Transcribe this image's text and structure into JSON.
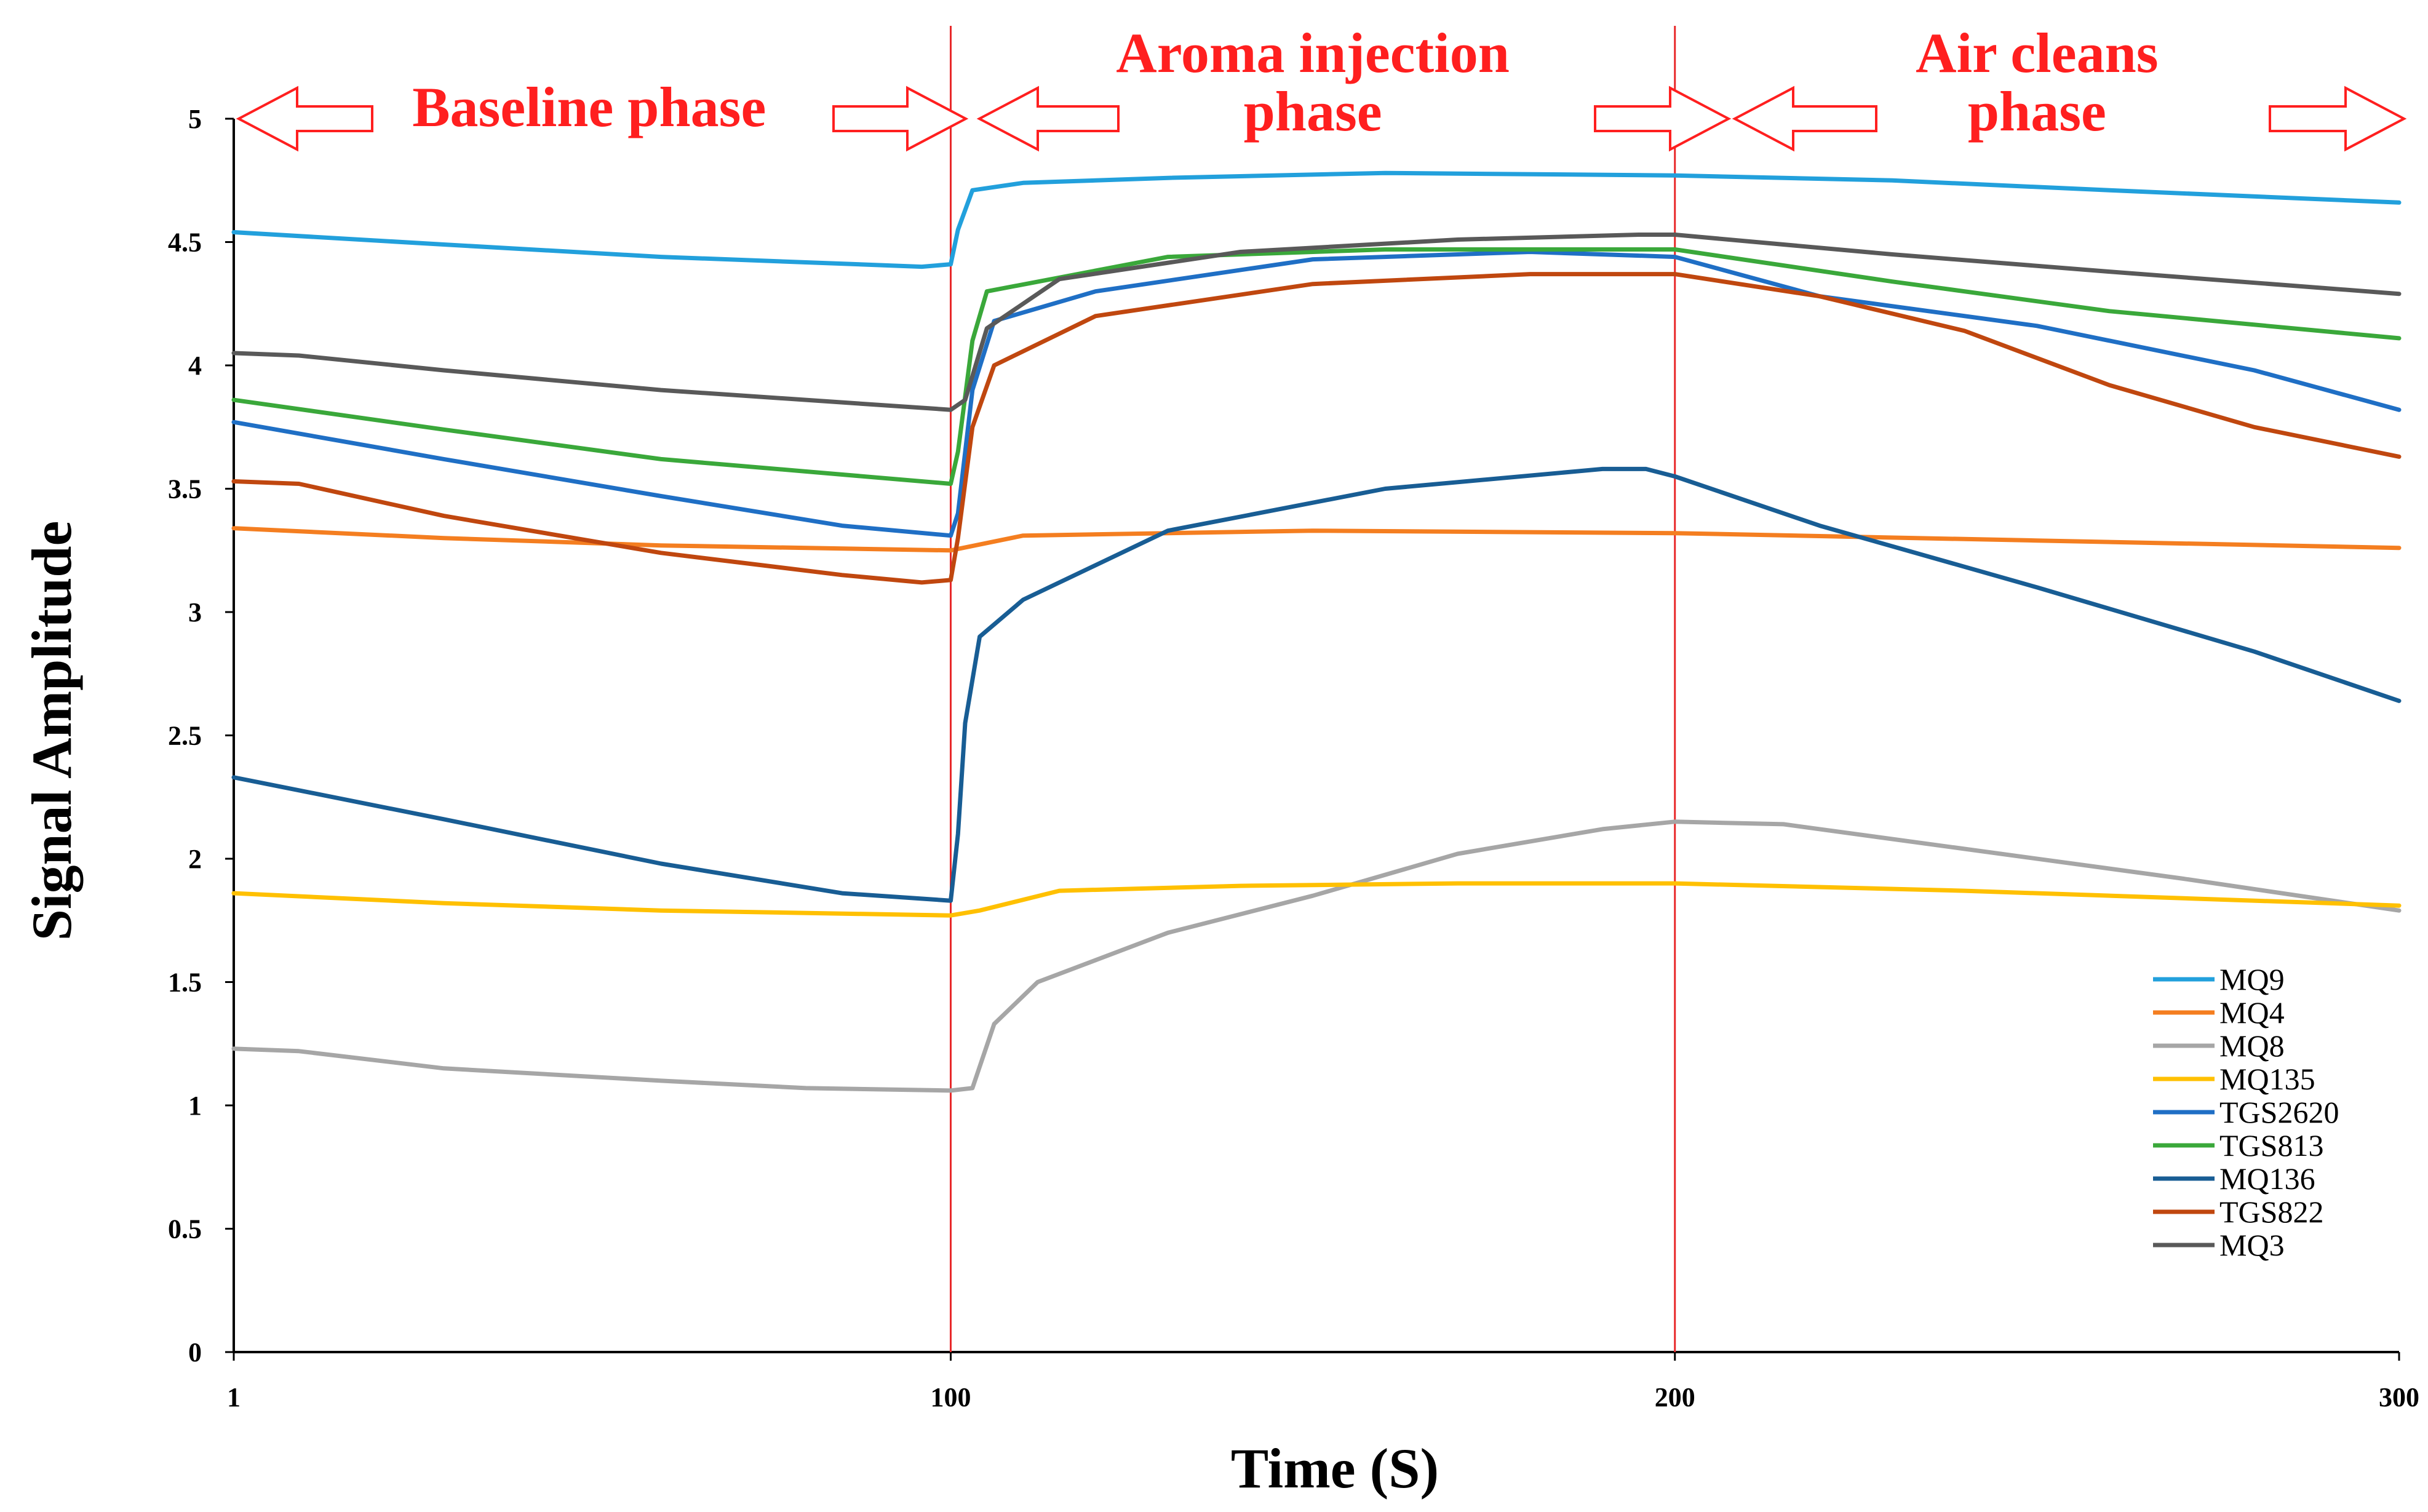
{
  "chart_data": {
    "type": "line",
    "title": "",
    "xlabel": "Time (S)",
    "ylabel": "Signal Amplitude",
    "xlim": [
      1,
      300
    ],
    "ylim": [
      0,
      5
    ],
    "x_ticks": [
      {
        "value": 1,
        "label": "1"
      },
      {
        "value": 100,
        "label": "100"
      },
      {
        "value": 200,
        "label": "200"
      },
      {
        "value": 300,
        "label": "300"
      }
    ],
    "y_ticks": [
      {
        "value": 0,
        "label": "0"
      },
      {
        "value": 0.5,
        "label": "0.5"
      },
      {
        "value": 1,
        "label": "1"
      },
      {
        "value": 1.5,
        "label": "1.5"
      },
      {
        "value": 2,
        "label": "2"
      },
      {
        "value": 2.5,
        "label": "2.5"
      },
      {
        "value": 3,
        "label": "3"
      },
      {
        "value": 3.5,
        "label": "3.5"
      },
      {
        "value": 4,
        "label": "4"
      },
      {
        "value": 4.5,
        "label": "4.5"
      },
      {
        "value": 5,
        "label": "5"
      }
    ],
    "grid": false,
    "legend_position": "bottom-right",
    "phase_dividers": [
      100,
      200
    ],
    "phases": [
      {
        "name": "Baseline phase",
        "start": 1,
        "end": 100,
        "lines": [
          "Baseline phase"
        ]
      },
      {
        "name": "Aroma injection phase",
        "start": 100,
        "end": 200,
        "lines": [
          "Aroma injection",
          "phase"
        ]
      },
      {
        "name": "Air cleans phase",
        "start": 200,
        "end": 300,
        "lines": [
          "Air cleans",
          "phase"
        ]
      }
    ],
    "divider_color": "#e8292a",
    "phase_color": "#ff1f1f",
    "series": [
      {
        "name": "MQ9",
        "color": "#22a0dc",
        "points": [
          [
            1,
            4.54
          ],
          [
            30,
            4.49
          ],
          [
            60,
            4.44
          ],
          [
            96,
            4.4
          ],
          [
            100,
            4.41
          ],
          [
            101,
            4.55
          ],
          [
            103,
            4.71
          ],
          [
            110,
            4.74
          ],
          [
            130,
            4.76
          ],
          [
            160,
            4.78
          ],
          [
            200,
            4.77
          ],
          [
            230,
            4.75
          ],
          [
            260,
            4.71
          ],
          [
            300,
            4.66
          ]
        ]
      },
      {
        "name": "MQ4",
        "color": "#f47e20",
        "points": [
          [
            1,
            3.34
          ],
          [
            30,
            3.3
          ],
          [
            60,
            3.27
          ],
          [
            100,
            3.25
          ],
          [
            110,
            3.31
          ],
          [
            150,
            3.33
          ],
          [
            200,
            3.32
          ],
          [
            250,
            3.29
          ],
          [
            300,
            3.26
          ]
        ]
      },
      {
        "name": "MQ8",
        "color": "#a6a6a6",
        "points": [
          [
            1,
            1.23
          ],
          [
            10,
            1.22
          ],
          [
            30,
            1.15
          ],
          [
            60,
            1.1
          ],
          [
            80,
            1.07
          ],
          [
            100,
            1.06
          ],
          [
            103,
            1.07
          ],
          [
            106,
            1.33
          ],
          [
            112,
            1.5
          ],
          [
            130,
            1.7
          ],
          [
            150,
            1.85
          ],
          [
            170,
            2.02
          ],
          [
            190,
            2.12
          ],
          [
            200,
            2.15
          ],
          [
            215,
            2.14
          ],
          [
            240,
            2.04
          ],
          [
            270,
            1.92
          ],
          [
            300,
            1.79
          ]
        ]
      },
      {
        "name": "MQ135",
        "color": "#ffc000",
        "points": [
          [
            1,
            1.86
          ],
          [
            30,
            1.82
          ],
          [
            60,
            1.79
          ],
          [
            100,
            1.77
          ],
          [
            104,
            1.79
          ],
          [
            115,
            1.87
          ],
          [
            140,
            1.89
          ],
          [
            170,
            1.9
          ],
          [
            200,
            1.9
          ],
          [
            240,
            1.87
          ],
          [
            300,
            1.81
          ]
        ]
      },
      {
        "name": "TGS2620",
        "color": "#1f6fc5",
        "points": [
          [
            1,
            3.77
          ],
          [
            30,
            3.62
          ],
          [
            60,
            3.47
          ],
          [
            85,
            3.35
          ],
          [
            100,
            3.31
          ],
          [
            101,
            3.4
          ],
          [
            103,
            3.9
          ],
          [
            106,
            4.18
          ],
          [
            120,
            4.3
          ],
          [
            150,
            4.43
          ],
          [
            180,
            4.46
          ],
          [
            200,
            4.44
          ],
          [
            220,
            4.28
          ],
          [
            250,
            4.16
          ],
          [
            280,
            3.98
          ],
          [
            300,
            3.82
          ]
        ]
      },
      {
        "name": "TGS813",
        "color": "#3aa83a",
        "points": [
          [
            1,
            3.86
          ],
          [
            30,
            3.74
          ],
          [
            60,
            3.62
          ],
          [
            100,
            3.52
          ],
          [
            101,
            3.65
          ],
          [
            103,
            4.1
          ],
          [
            105,
            4.3
          ],
          [
            130,
            4.44
          ],
          [
            160,
            4.47
          ],
          [
            200,
            4.47
          ],
          [
            230,
            4.34
          ],
          [
            260,
            4.22
          ],
          [
            300,
            4.11
          ]
        ]
      },
      {
        "name": "MQ136",
        "color": "#185d94",
        "points": [
          [
            1,
            2.33
          ],
          [
            30,
            2.16
          ],
          [
            60,
            1.98
          ],
          [
            85,
            1.86
          ],
          [
            100,
            1.83
          ],
          [
            101,
            2.1
          ],
          [
            102,
            2.55
          ],
          [
            104,
            2.9
          ],
          [
            110,
            3.05
          ],
          [
            130,
            3.33
          ],
          [
            160,
            3.5
          ],
          [
            190,
            3.58
          ],
          [
            196,
            3.58
          ],
          [
            200,
            3.55
          ],
          [
            220,
            3.35
          ],
          [
            250,
            3.1
          ],
          [
            280,
            2.84
          ],
          [
            300,
            2.64
          ]
        ]
      },
      {
        "name": "TGS822",
        "color": "#c0470f",
        "points": [
          [
            1,
            3.53
          ],
          [
            10,
            3.52
          ],
          [
            30,
            3.39
          ],
          [
            60,
            3.24
          ],
          [
            85,
            3.15
          ],
          [
            96,
            3.12
          ],
          [
            100,
            3.13
          ],
          [
            101,
            3.3
          ],
          [
            103,
            3.75
          ],
          [
            106,
            4.0
          ],
          [
            120,
            4.2
          ],
          [
            150,
            4.33
          ],
          [
            180,
            4.37
          ],
          [
            200,
            4.37
          ],
          [
            220,
            4.28
          ],
          [
            240,
            4.14
          ],
          [
            260,
            3.92
          ],
          [
            280,
            3.75
          ],
          [
            300,
            3.63
          ]
        ]
      },
      {
        "name": "MQ3",
        "color": "#595959",
        "points": [
          [
            1,
            4.05
          ],
          [
            10,
            4.04
          ],
          [
            30,
            3.98
          ],
          [
            60,
            3.9
          ],
          [
            100,
            3.82
          ],
          [
            102,
            3.86
          ],
          [
            105,
            4.15
          ],
          [
            115,
            4.35
          ],
          [
            140,
            4.46
          ],
          [
            170,
            4.51
          ],
          [
            195,
            4.53
          ],
          [
            200,
            4.53
          ],
          [
            230,
            4.45
          ],
          [
            260,
            4.38
          ],
          [
            300,
            4.29
          ]
        ]
      }
    ]
  }
}
